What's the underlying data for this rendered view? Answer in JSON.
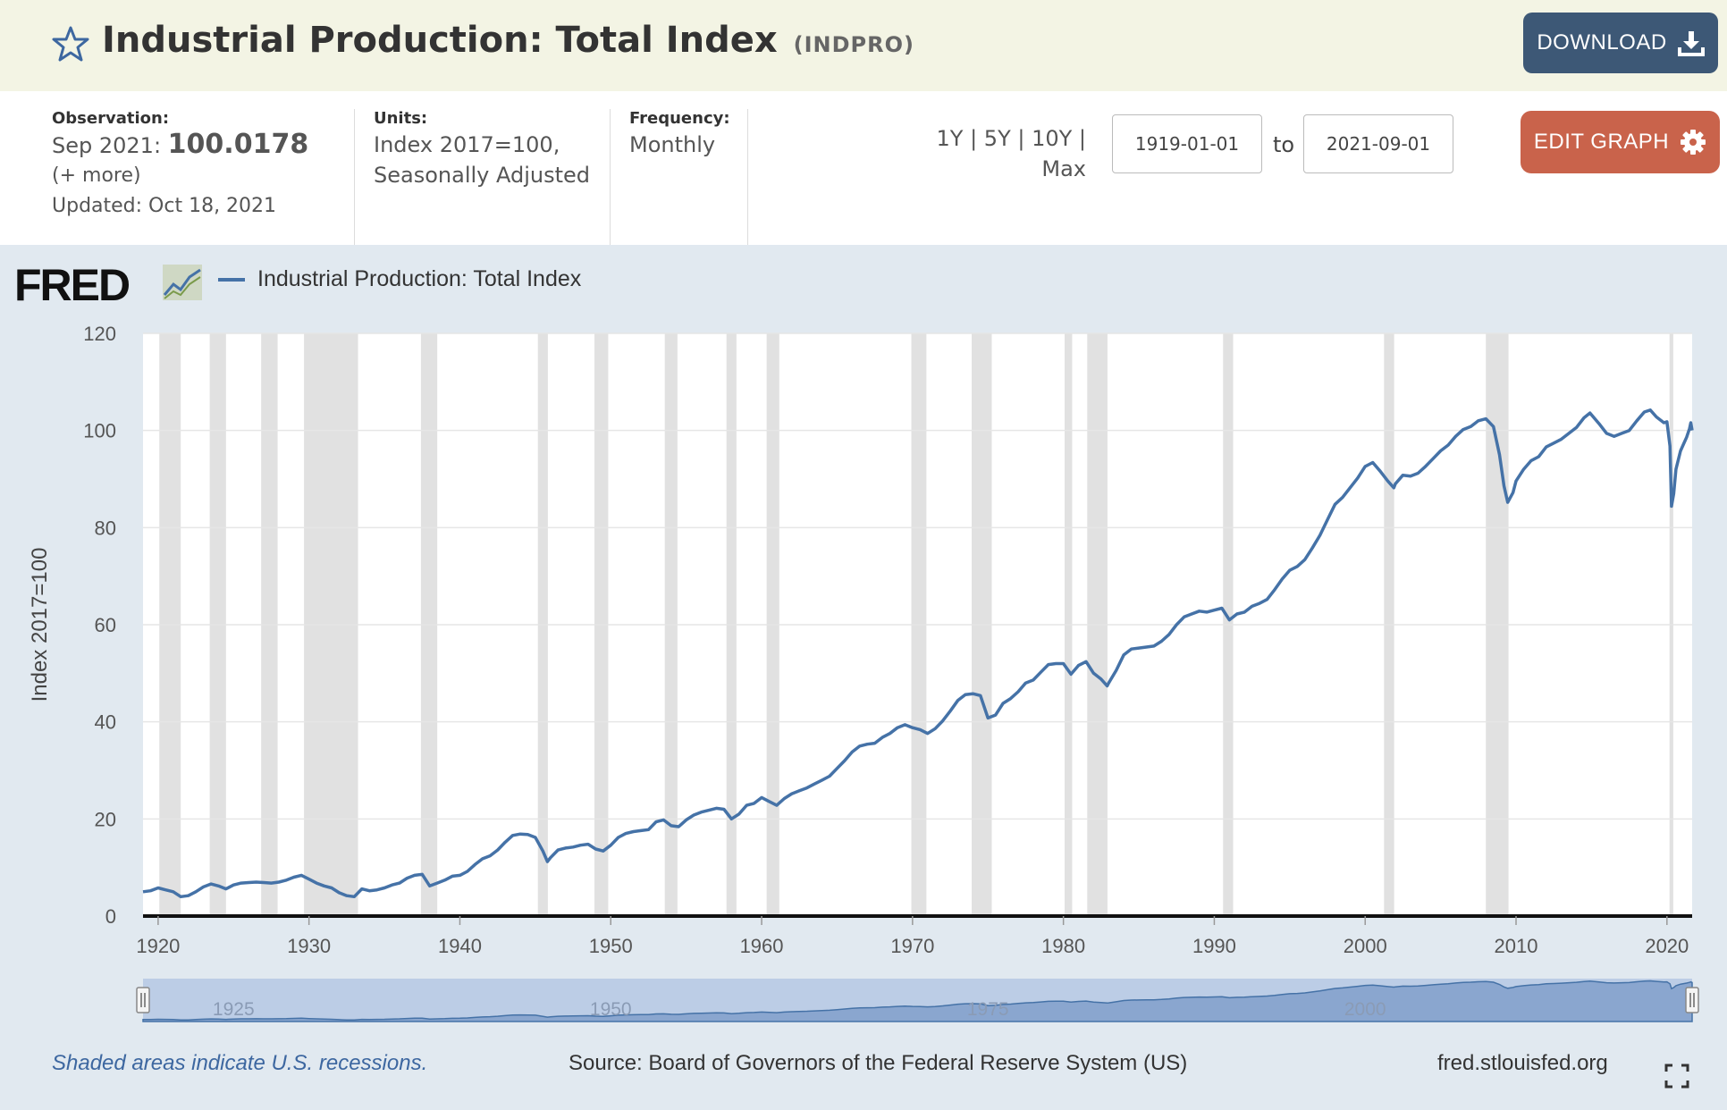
{
  "header": {
    "title": "Industrial Production: Total Index",
    "series_id": "(INDPRO)",
    "download_label": "DOWNLOAD",
    "star_icon": "star-outline-icon",
    "download_icon": "download-icon"
  },
  "meta": {
    "observation_label": "Observation:",
    "observation_date": "Sep 2021:",
    "observation_value": "100.0178",
    "more_link": "(+ more)",
    "updated": "Updated: Oct 18, 2021",
    "units_label": "Units:",
    "units_line1": "Index 2017=100,",
    "units_line2": "Seasonally Adjusted",
    "frequency_label": "Frequency:",
    "frequency_value": "Monthly"
  },
  "range": {
    "options": [
      "1Y",
      "5Y",
      "10Y",
      "Max"
    ],
    "start": "1919-01-01",
    "to_label": "to",
    "end": "2021-09-01"
  },
  "edit_graph_label": "EDIT GRAPH",
  "fred_logo": "FRED",
  "colors": {
    "series": "#4572a7",
    "recession": "#e1e1e1",
    "header_bg": "#f3f4e4",
    "download": "#3d5876",
    "edit": "#c9634b"
  },
  "chart_data": {
    "type": "line",
    "ylabel": "Index 2017=100",
    "xlabel": "",
    "xlim": [
      1919.0,
      2021.67
    ],
    "ylim": [
      0,
      120
    ],
    "yticks": [
      0,
      20,
      40,
      60,
      80,
      100,
      120
    ],
    "xticks": [
      1920,
      1930,
      1940,
      1950,
      1960,
      1970,
      1980,
      1990,
      2000,
      2010,
      2020
    ],
    "navigator_ticks": [
      1925,
      1950,
      1975,
      2000
    ],
    "grid": true,
    "legend_position": "top-left",
    "series": [
      {
        "name": "Industrial Production: Total Index",
        "points": [
          [
            1919.0,
            5.0
          ],
          [
            1919.5,
            5.2
          ],
          [
            1920.0,
            5.8
          ],
          [
            1920.5,
            5.4
          ],
          [
            1921.0,
            5.0
          ],
          [
            1921.5,
            4.0
          ],
          [
            1922.0,
            4.2
          ],
          [
            1922.5,
            5.0
          ],
          [
            1923.0,
            6.0
          ],
          [
            1923.5,
            6.6
          ],
          [
            1924.0,
            6.2
          ],
          [
            1924.5,
            5.6
          ],
          [
            1925.0,
            6.4
          ],
          [
            1925.5,
            6.8
          ],
          [
            1926.0,
            6.9
          ],
          [
            1926.5,
            7.0
          ],
          [
            1927.0,
            6.9
          ],
          [
            1927.5,
            6.8
          ],
          [
            1928.0,
            7.0
          ],
          [
            1928.5,
            7.4
          ],
          [
            1929.0,
            8.0
          ],
          [
            1929.5,
            8.4
          ],
          [
            1930.0,
            7.6
          ],
          [
            1930.5,
            6.8
          ],
          [
            1931.0,
            6.2
          ],
          [
            1931.5,
            5.8
          ],
          [
            1932.0,
            4.8
          ],
          [
            1932.5,
            4.2
          ],
          [
            1933.0,
            4.0
          ],
          [
            1933.5,
            5.6
          ],
          [
            1934.0,
            5.2
          ],
          [
            1934.5,
            5.4
          ],
          [
            1935.0,
            5.8
          ],
          [
            1935.5,
            6.4
          ],
          [
            1936.0,
            6.8
          ],
          [
            1936.5,
            7.8
          ],
          [
            1937.0,
            8.4
          ],
          [
            1937.5,
            8.6
          ],
          [
            1938.0,
            6.2
          ],
          [
            1938.5,
            6.8
          ],
          [
            1939.0,
            7.4
          ],
          [
            1939.5,
            8.2
          ],
          [
            1940.0,
            8.4
          ],
          [
            1940.5,
            9.2
          ],
          [
            1941.0,
            10.6
          ],
          [
            1941.5,
            11.8
          ],
          [
            1942.0,
            12.4
          ],
          [
            1942.5,
            13.6
          ],
          [
            1943.0,
            15.2
          ],
          [
            1943.5,
            16.6
          ],
          [
            1944.0,
            16.9
          ],
          [
            1944.5,
            16.8
          ],
          [
            1945.0,
            16.2
          ],
          [
            1945.5,
            13.4
          ],
          [
            1945.8,
            11.2
          ],
          [
            1946.0,
            12.0
          ],
          [
            1946.5,
            13.6
          ],
          [
            1947.0,
            14.0
          ],
          [
            1947.5,
            14.2
          ],
          [
            1948.0,
            14.6
          ],
          [
            1948.5,
            14.8
          ],
          [
            1949.0,
            13.8
          ],
          [
            1949.5,
            13.4
          ],
          [
            1950.0,
            14.6
          ],
          [
            1950.5,
            16.2
          ],
          [
            1951.0,
            17.0
          ],
          [
            1951.5,
            17.4
          ],
          [
            1952.0,
            17.6
          ],
          [
            1952.5,
            17.8
          ],
          [
            1953.0,
            19.4
          ],
          [
            1953.5,
            19.8
          ],
          [
            1954.0,
            18.6
          ],
          [
            1954.5,
            18.4
          ],
          [
            1955.0,
            19.8
          ],
          [
            1955.5,
            20.8
          ],
          [
            1956.0,
            21.4
          ],
          [
            1956.5,
            21.8
          ],
          [
            1957.0,
            22.2
          ],
          [
            1957.5,
            22.0
          ],
          [
            1958.0,
            20.0
          ],
          [
            1958.5,
            21.0
          ],
          [
            1959.0,
            22.8
          ],
          [
            1959.5,
            23.2
          ],
          [
            1960.0,
            24.4
          ],
          [
            1960.5,
            23.6
          ],
          [
            1961.0,
            22.8
          ],
          [
            1961.5,
            24.2
          ],
          [
            1962.0,
            25.2
          ],
          [
            1962.5,
            25.8
          ],
          [
            1963.0,
            26.4
          ],
          [
            1963.5,
            27.2
          ],
          [
            1964.0,
            28.0
          ],
          [
            1964.5,
            28.8
          ],
          [
            1965.0,
            30.4
          ],
          [
            1965.5,
            32.0
          ],
          [
            1966.0,
            33.8
          ],
          [
            1966.5,
            35.0
          ],
          [
            1967.0,
            35.4
          ],
          [
            1967.5,
            35.6
          ],
          [
            1968.0,
            36.8
          ],
          [
            1968.5,
            37.6
          ],
          [
            1969.0,
            38.8
          ],
          [
            1969.5,
            39.4
          ],
          [
            1970.0,
            38.8
          ],
          [
            1970.5,
            38.4
          ],
          [
            1971.0,
            37.6
          ],
          [
            1971.5,
            38.6
          ],
          [
            1972.0,
            40.2
          ],
          [
            1972.5,
            42.2
          ],
          [
            1973.0,
            44.4
          ],
          [
            1973.5,
            45.6
          ],
          [
            1974.0,
            45.8
          ],
          [
            1974.5,
            45.4
          ],
          [
            1975.0,
            40.8
          ],
          [
            1975.5,
            41.4
          ],
          [
            1976.0,
            43.8
          ],
          [
            1976.5,
            44.8
          ],
          [
            1977.0,
            46.2
          ],
          [
            1977.5,
            48.0
          ],
          [
            1978.0,
            48.6
          ],
          [
            1978.5,
            50.2
          ],
          [
            1979.0,
            51.8
          ],
          [
            1979.5,
            52.0
          ],
          [
            1980.0,
            52.0
          ],
          [
            1980.5,
            49.8
          ],
          [
            1981.0,
            51.6
          ],
          [
            1981.5,
            52.4
          ],
          [
            1982.0,
            50.0
          ],
          [
            1982.5,
            48.8
          ],
          [
            1982.9,
            47.4
          ],
          [
            1983.0,
            48.0
          ],
          [
            1983.5,
            50.6
          ],
          [
            1984.0,
            53.8
          ],
          [
            1984.5,
            55.0
          ],
          [
            1985.0,
            55.2
          ],
          [
            1985.5,
            55.4
          ],
          [
            1986.0,
            55.6
          ],
          [
            1986.5,
            56.6
          ],
          [
            1987.0,
            58.0
          ],
          [
            1987.5,
            60.0
          ],
          [
            1988.0,
            61.6
          ],
          [
            1988.5,
            62.2
          ],
          [
            1989.0,
            62.8
          ],
          [
            1989.5,
            62.6
          ],
          [
            1990.0,
            63.0
          ],
          [
            1990.5,
            63.4
          ],
          [
            1991.0,
            61.0
          ],
          [
            1991.5,
            62.2
          ],
          [
            1992.0,
            62.6
          ],
          [
            1992.5,
            63.8
          ],
          [
            1993.0,
            64.4
          ],
          [
            1993.5,
            65.2
          ],
          [
            1994.0,
            67.2
          ],
          [
            1994.5,
            69.4
          ],
          [
            1995.0,
            71.2
          ],
          [
            1995.5,
            72.0
          ],
          [
            1996.0,
            73.4
          ],
          [
            1996.5,
            75.8
          ],
          [
            1997.0,
            78.4
          ],
          [
            1997.5,
            81.6
          ],
          [
            1998.0,
            84.8
          ],
          [
            1998.5,
            86.2
          ],
          [
            1999.0,
            88.2
          ],
          [
            1999.5,
            90.2
          ],
          [
            2000.0,
            92.6
          ],
          [
            2000.5,
            93.4
          ],
          [
            2001.0,
            91.6
          ],
          [
            2001.5,
            89.6
          ],
          [
            2001.9,
            88.2
          ],
          [
            2002.0,
            89.0
          ],
          [
            2002.5,
            90.8
          ],
          [
            2003.0,
            90.6
          ],
          [
            2003.5,
            91.2
          ],
          [
            2004.0,
            92.6
          ],
          [
            2004.5,
            94.2
          ],
          [
            2005.0,
            95.8
          ],
          [
            2005.5,
            97.0
          ],
          [
            2006.0,
            98.8
          ],
          [
            2006.5,
            100.2
          ],
          [
            2007.0,
            100.8
          ],
          [
            2007.5,
            102.0
          ],
          [
            2008.0,
            102.4
          ],
          [
            2008.5,
            100.8
          ],
          [
            2008.9,
            95.0
          ],
          [
            2009.2,
            88.6
          ],
          [
            2009.45,
            85.2
          ],
          [
            2009.8,
            87.2
          ],
          [
            2010.0,
            89.6
          ],
          [
            2010.5,
            92.0
          ],
          [
            2011.0,
            93.8
          ],
          [
            2011.5,
            94.6
          ],
          [
            2012.0,
            96.6
          ],
          [
            2012.5,
            97.4
          ],
          [
            2013.0,
            98.2
          ],
          [
            2013.5,
            99.4
          ],
          [
            2014.0,
            100.6
          ],
          [
            2014.5,
            102.6
          ],
          [
            2014.9,
            103.6
          ],
          [
            2015.5,
            101.4
          ],
          [
            2016.0,
            99.4
          ],
          [
            2016.5,
            98.8
          ],
          [
            2017.0,
            99.4
          ],
          [
            2017.5,
            100.0
          ],
          [
            2018.0,
            102.0
          ],
          [
            2018.5,
            103.8
          ],
          [
            2018.9,
            104.2
          ],
          [
            2019.3,
            102.8
          ],
          [
            2019.8,
            101.6
          ],
          [
            2020.0,
            101.8
          ],
          [
            2020.2,
            96.8
          ],
          [
            2020.3,
            84.4
          ],
          [
            2020.45,
            87.0
          ],
          [
            2020.6,
            92.0
          ],
          [
            2020.9,
            95.8
          ],
          [
            2021.1,
            97.2
          ],
          [
            2021.3,
            98.6
          ],
          [
            2021.5,
            100.4
          ],
          [
            2021.58,
            101.6
          ],
          [
            2021.67,
            100.0178
          ]
        ]
      }
    ],
    "recessions": [
      [
        1920.08,
        1921.5
      ],
      [
        1923.42,
        1924.5
      ],
      [
        1926.83,
        1927.92
      ],
      [
        1929.67,
        1933.25
      ],
      [
        1937.42,
        1938.5
      ],
      [
        1945.17,
        1945.83
      ],
      [
        1948.92,
        1949.83
      ],
      [
        1953.58,
        1954.42
      ],
      [
        1957.67,
        1958.33
      ],
      [
        1960.33,
        1961.17
      ],
      [
        1969.92,
        1970.92
      ],
      [
        1973.92,
        1975.25
      ],
      [
        1980.08,
        1980.58
      ],
      [
        1981.58,
        1982.92
      ],
      [
        1990.58,
        1991.25
      ],
      [
        2001.25,
        2001.92
      ],
      [
        2008.0,
        2009.5
      ],
      [
        2020.17,
        2020.42
      ]
    ],
    "footnote": "Shaded areas indicate U.S. recessions.",
    "source": "Source: Board of Governors of the Federal Reserve System (US)",
    "site": "fred.stlouisfed.org"
  }
}
